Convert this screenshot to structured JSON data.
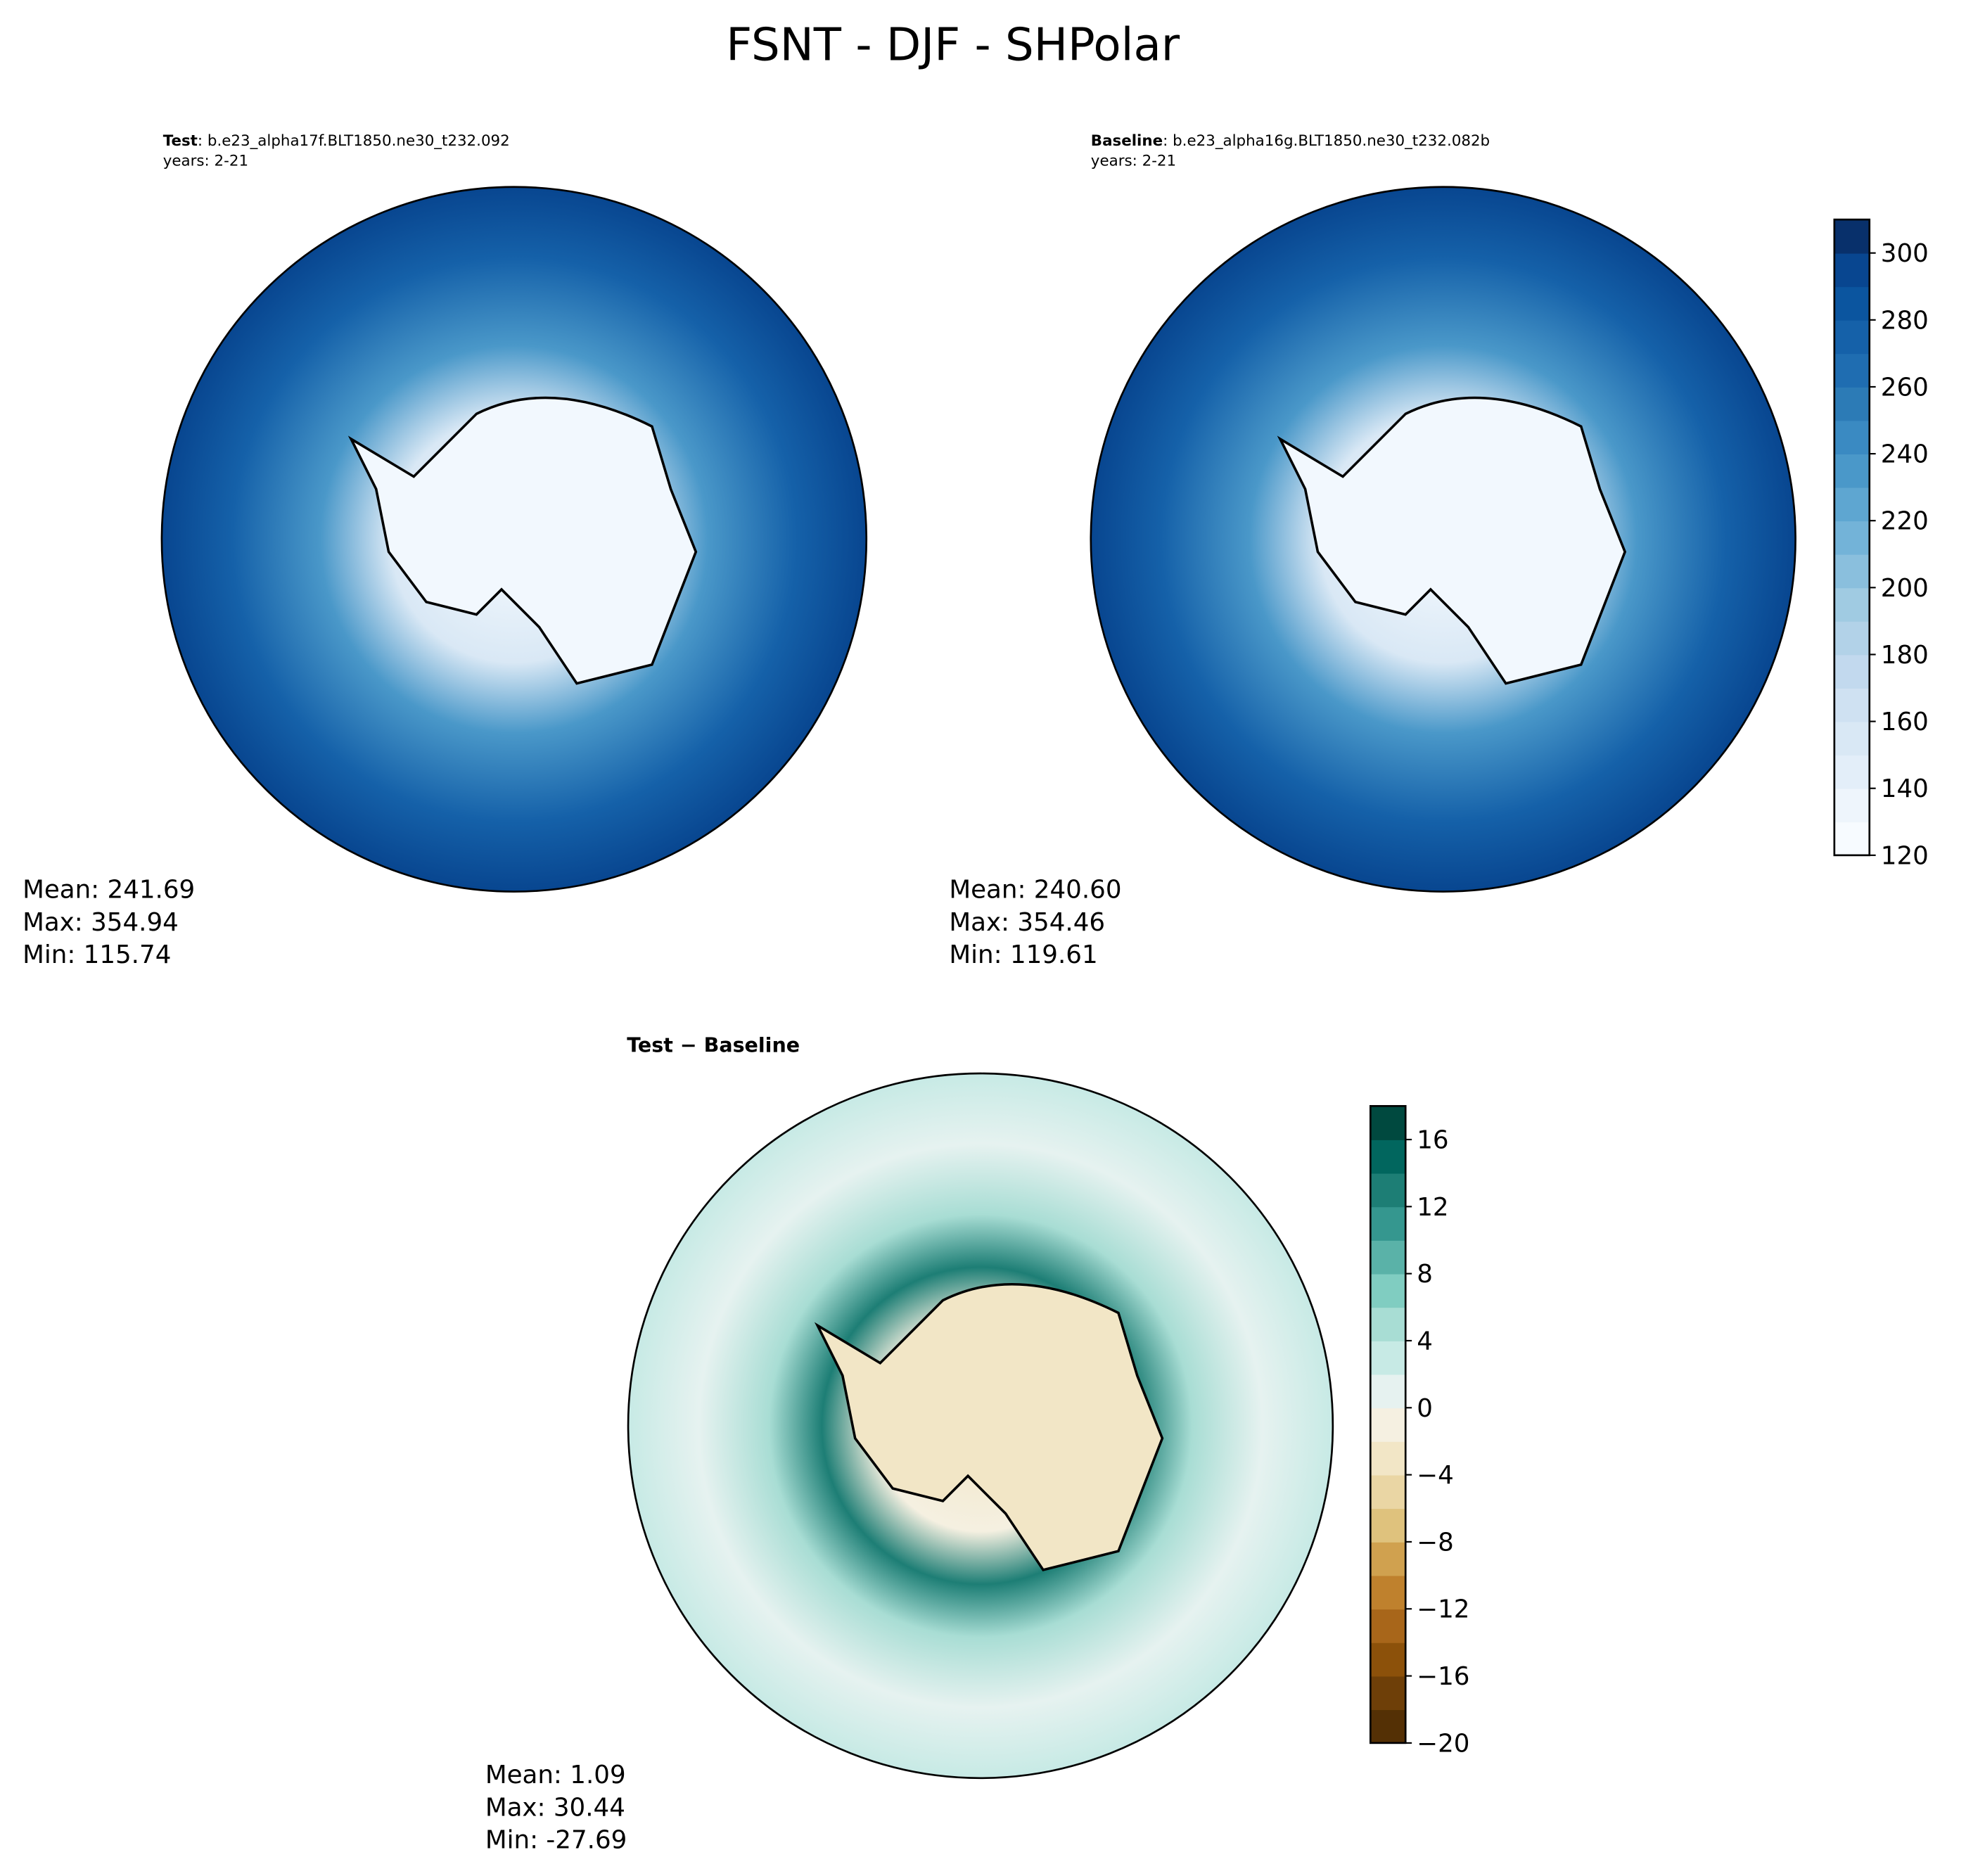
{
  "title": "FSNT - DJF - SHPolar",
  "panels": [
    {
      "label_bold": "Test",
      "label_rest": ": b.e23_alpha17f.BLT1850.ne30_t232.092",
      "years": "years: 2-21",
      "stats": [
        "Mean: 241.69",
        "Max: 354.94",
        "Min: 115.74"
      ]
    },
    {
      "label_bold": "Baseline",
      "label_rest": ": b.e23_alpha16g.BLT1850.ne30_t232.082b",
      "years": "years: 2-21",
      "stats": [
        "Mean: 240.60",
        "Max: 354.46",
        "Min: 119.61"
      ]
    },
    {
      "label_bold": "Test − Baseline",
      "stats": [
        "Mean:  1.09",
        "Max: 30.44",
        "Min: -27.69"
      ]
    }
  ],
  "colorbars": [
    {
      "lim": [
        120,
        310
      ],
      "ticks": [
        120,
        140,
        160,
        180,
        200,
        220,
        240,
        260,
        280,
        300
      ],
      "colors": [
        "#f7fbff",
        "#eef5fc",
        "#e3eef9",
        "#d9e8f5",
        "#cfe1f2",
        "#c2d9ee",
        "#b2d2e8",
        "#a0cbe2",
        "#8abfdd",
        "#73b3d8",
        "#5ea6d1",
        "#4a98c9",
        "#3a8ac2",
        "#2c7bb6",
        "#1f6db1",
        "#1561a9",
        "#0b559f",
        "#084690",
        "#08306b"
      ]
    },
    {
      "lim": [
        -20,
        18
      ],
      "ticks": [
        {
          "value": -20,
          "label": "−20"
        },
        {
          "value": -16,
          "label": "−16"
        },
        {
          "value": -12,
          "label": "−12"
        },
        {
          "value": -8,
          "label": "−8"
        },
        {
          "value": -4,
          "label": "−4"
        },
        0,
        4,
        8,
        12,
        16
      ],
      "colors": [
        "#543005",
        "#6e3f08",
        "#8c510a",
        "#a8661a",
        "#bf812d",
        "#d0a14f",
        "#dfc27d",
        "#ead6a4",
        "#f2e6c6",
        "#f5f0e1",
        "#e6f2f0",
        "#c7eae5",
        "#a8ddd4",
        "#80cdc1",
        "#5ab2a8",
        "#35978f",
        "#1d7e75",
        "#01665e",
        "#00493f"
      ]
    }
  ]
}
